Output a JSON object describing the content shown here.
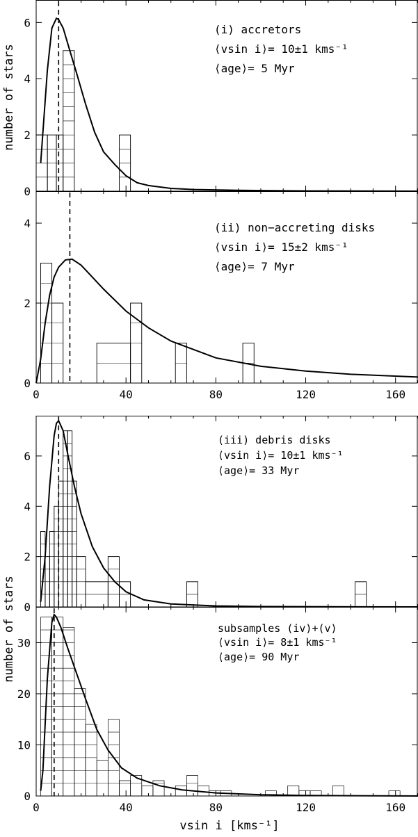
{
  "chart_data": [
    {
      "type": "histogram",
      "panel": "(i)",
      "annotation": [
        "(i) accretors",
        "⟨vsin i⟩= 10±1 kms⁻¹",
        "⟨age⟩= 5 Myr"
      ],
      "ylabel": "number of stars",
      "xlim": [
        0,
        170
      ],
      "ylim": [
        0,
        6.8
      ],
      "yticks": [
        "0",
        "2",
        "4",
        "6"
      ],
      "mean_vsini": 10,
      "bins": [
        {
          "x0": 0,
          "x1": 5,
          "count": 2
        },
        {
          "x0": 5,
          "x1": 9,
          "count": 2
        },
        {
          "x0": 9,
          "x1": 12,
          "count": 2
        },
        {
          "x0": 12,
          "x1": 17,
          "count": 5
        },
        {
          "x0": 37,
          "x1": 42,
          "count": 2
        }
      ],
      "fit_curve": {
        "x": [
          2,
          5,
          7,
          9,
          10,
          12,
          15,
          18,
          22,
          26,
          30,
          35,
          40,
          45,
          50,
          60,
          70,
          90,
          120,
          170
        ],
        "y": [
          1.0,
          4.3,
          5.8,
          6.15,
          6.1,
          5.8,
          5.0,
          4.2,
          3.1,
          2.1,
          1.4,
          0.95,
          0.55,
          0.3,
          0.2,
          0.1,
          0.06,
          0.03,
          0.01,
          0.0
        ]
      }
    },
    {
      "type": "histogram",
      "panel": "(ii)",
      "annotation": [
        "(ii) non−accreting disks",
        "⟨vsin i⟩= 15±2 kms⁻¹",
        "⟨age⟩= 7 Myr"
      ],
      "ylabel": "number of stars",
      "xlabel_ticks": [
        "0",
        "40",
        "80",
        "120",
        "160"
      ],
      "xlim": [
        0,
        170
      ],
      "ylim": [
        0,
        4.8
      ],
      "yticks": [
        "0",
        "2",
        "4"
      ],
      "mean_vsini": 15,
      "bins": [
        {
          "x0": 2,
          "x1": 7,
          "count": 3
        },
        {
          "x0": 7,
          "x1": 12,
          "count": 2
        },
        {
          "x0": 27,
          "x1": 42,
          "count": 1
        },
        {
          "x0": 42,
          "x1": 47,
          "count": 2
        },
        {
          "x0": 62,
          "x1": 67,
          "count": 1
        },
        {
          "x0": 92,
          "x1": 97,
          "count": 1
        }
      ],
      "fit_curve": {
        "x": [
          0,
          2,
          4,
          6,
          8,
          10,
          13,
          16,
          20,
          25,
          30,
          40,
          50,
          60,
          80,
          100,
          120,
          140,
          170
        ],
        "y": [
          0,
          0.6,
          1.5,
          2.2,
          2.65,
          2.9,
          3.08,
          3.1,
          2.95,
          2.65,
          2.35,
          1.8,
          1.38,
          1.05,
          0.63,
          0.42,
          0.3,
          0.22,
          0.15
        ]
      }
    },
    {
      "type": "histogram",
      "panel": "(iii)",
      "annotation": [
        "(iii) debris disks",
        "⟨vsin i⟩= 10±1 kms⁻¹",
        "⟨age⟩= 33 Myr"
      ],
      "ylabel": "number of stars",
      "xlim": [
        0,
        170
      ],
      "ylim": [
        0,
        7.6
      ],
      "yticks": [
        "0",
        "2",
        "4",
        "6"
      ],
      "mean_vsini": 10,
      "bins": [
        {
          "x0": 2,
          "x1": 4,
          "count": 3
        },
        {
          "x0": 4,
          "x1": 6,
          "count": 2
        },
        {
          "x0": 6,
          "x1": 8,
          "count": 3
        },
        {
          "x0": 8,
          "x1": 10,
          "count": 4
        },
        {
          "x0": 10,
          "x1": 12,
          "count": 5
        },
        {
          "x0": 12,
          "x1": 14,
          "count": 7
        },
        {
          "x0": 14,
          "x1": 16,
          "count": 7
        },
        {
          "x0": 16,
          "x1": 18,
          "count": 5
        },
        {
          "x0": 18,
          "x1": 22,
          "count": 2
        },
        {
          "x0": 22,
          "x1": 32,
          "count": 1
        },
        {
          "x0": 32,
          "x1": 37,
          "count": 2
        },
        {
          "x0": 37,
          "x1": 42,
          "count": 1
        },
        {
          "x0": 67,
          "x1": 72,
          "count": 1
        },
        {
          "x0": 142,
          "x1": 147,
          "count": 1
        }
      ],
      "fit_curve": {
        "x": [
          2,
          4,
          6,
          8,
          9,
          10,
          12,
          14,
          17,
          20,
          25,
          30,
          35,
          40,
          48,
          60,
          80,
          100,
          130,
          170
        ],
        "y": [
          0.2,
          2.0,
          4.8,
          6.8,
          7.3,
          7.4,
          7.0,
          6.1,
          4.8,
          3.7,
          2.4,
          1.55,
          1.0,
          0.6,
          0.28,
          0.12,
          0.04,
          0.015,
          0.005,
          0.0
        ]
      }
    },
    {
      "type": "histogram",
      "panel": "(iv)+(v)",
      "annotation": [
        "subsamples (iv)+(v)",
        "⟨vsin i⟩= 8±1 kms⁻¹",
        "⟨age⟩= 90 Myr"
      ],
      "ylabel": "number of stars",
      "xlabel": "vsin i [kms⁻¹]",
      "xlabel_ticks": [
        "0",
        "40",
        "80",
        "120",
        "160"
      ],
      "xlim": [
        0,
        170
      ],
      "ylim": [
        0,
        37
      ],
      "yticks": [
        "0",
        "10",
        "20",
        "30"
      ],
      "mean_vsini": 8,
      "bins": [
        {
          "x0": 2,
          "x1": 7,
          "count": 35
        },
        {
          "x0": 7,
          "x1": 12,
          "count": 35
        },
        {
          "x0": 12,
          "x1": 17,
          "count": 33
        },
        {
          "x0": 17,
          "x1": 22,
          "count": 21
        },
        {
          "x0": 22,
          "x1": 27,
          "count": 14
        },
        {
          "x0": 27,
          "x1": 32,
          "count": 7
        },
        {
          "x0": 32,
          "x1": 37,
          "count": 15
        },
        {
          "x0": 37,
          "x1": 42,
          "count": 3
        },
        {
          "x0": 42,
          "x1": 47,
          "count": 4
        },
        {
          "x0": 47,
          "x1": 52,
          "count": 2
        },
        {
          "x0": 52,
          "x1": 57,
          "count": 3
        },
        {
          "x0": 62,
          "x1": 67,
          "count": 2
        },
        {
          "x0": 67,
          "x1": 72,
          "count": 4
        },
        {
          "x0": 72,
          "x1": 77,
          "count": 2
        },
        {
          "x0": 77,
          "x1": 82,
          "count": 1
        },
        {
          "x0": 82,
          "x1": 87,
          "count": 1
        },
        {
          "x0": 102,
          "x1": 107,
          "count": 1
        },
        {
          "x0": 112,
          "x1": 117,
          "count": 2
        },
        {
          "x0": 117,
          "x1": 122,
          "count": 1
        },
        {
          "x0": 122,
          "x1": 127,
          "count": 1
        },
        {
          "x0": 132,
          "x1": 137,
          "count": 2
        },
        {
          "x0": 157,
          "x1": 162,
          "count": 1
        }
      ],
      "fit_curve": {
        "x": [
          2,
          3,
          5,
          7,
          8,
          9,
          11,
          14,
          18,
          22,
          27,
          32,
          38,
          45,
          55,
          65,
          80,
          100,
          120,
          140,
          170
        ],
        "y": [
          1,
          5,
          23,
          34,
          35.5,
          35,
          33,
          29,
          24,
          19,
          13,
          9,
          5.5,
          3.5,
          2.0,
          1.2,
          0.6,
          0.25,
          0.1,
          0.05,
          0.0
        ]
      }
    }
  ]
}
